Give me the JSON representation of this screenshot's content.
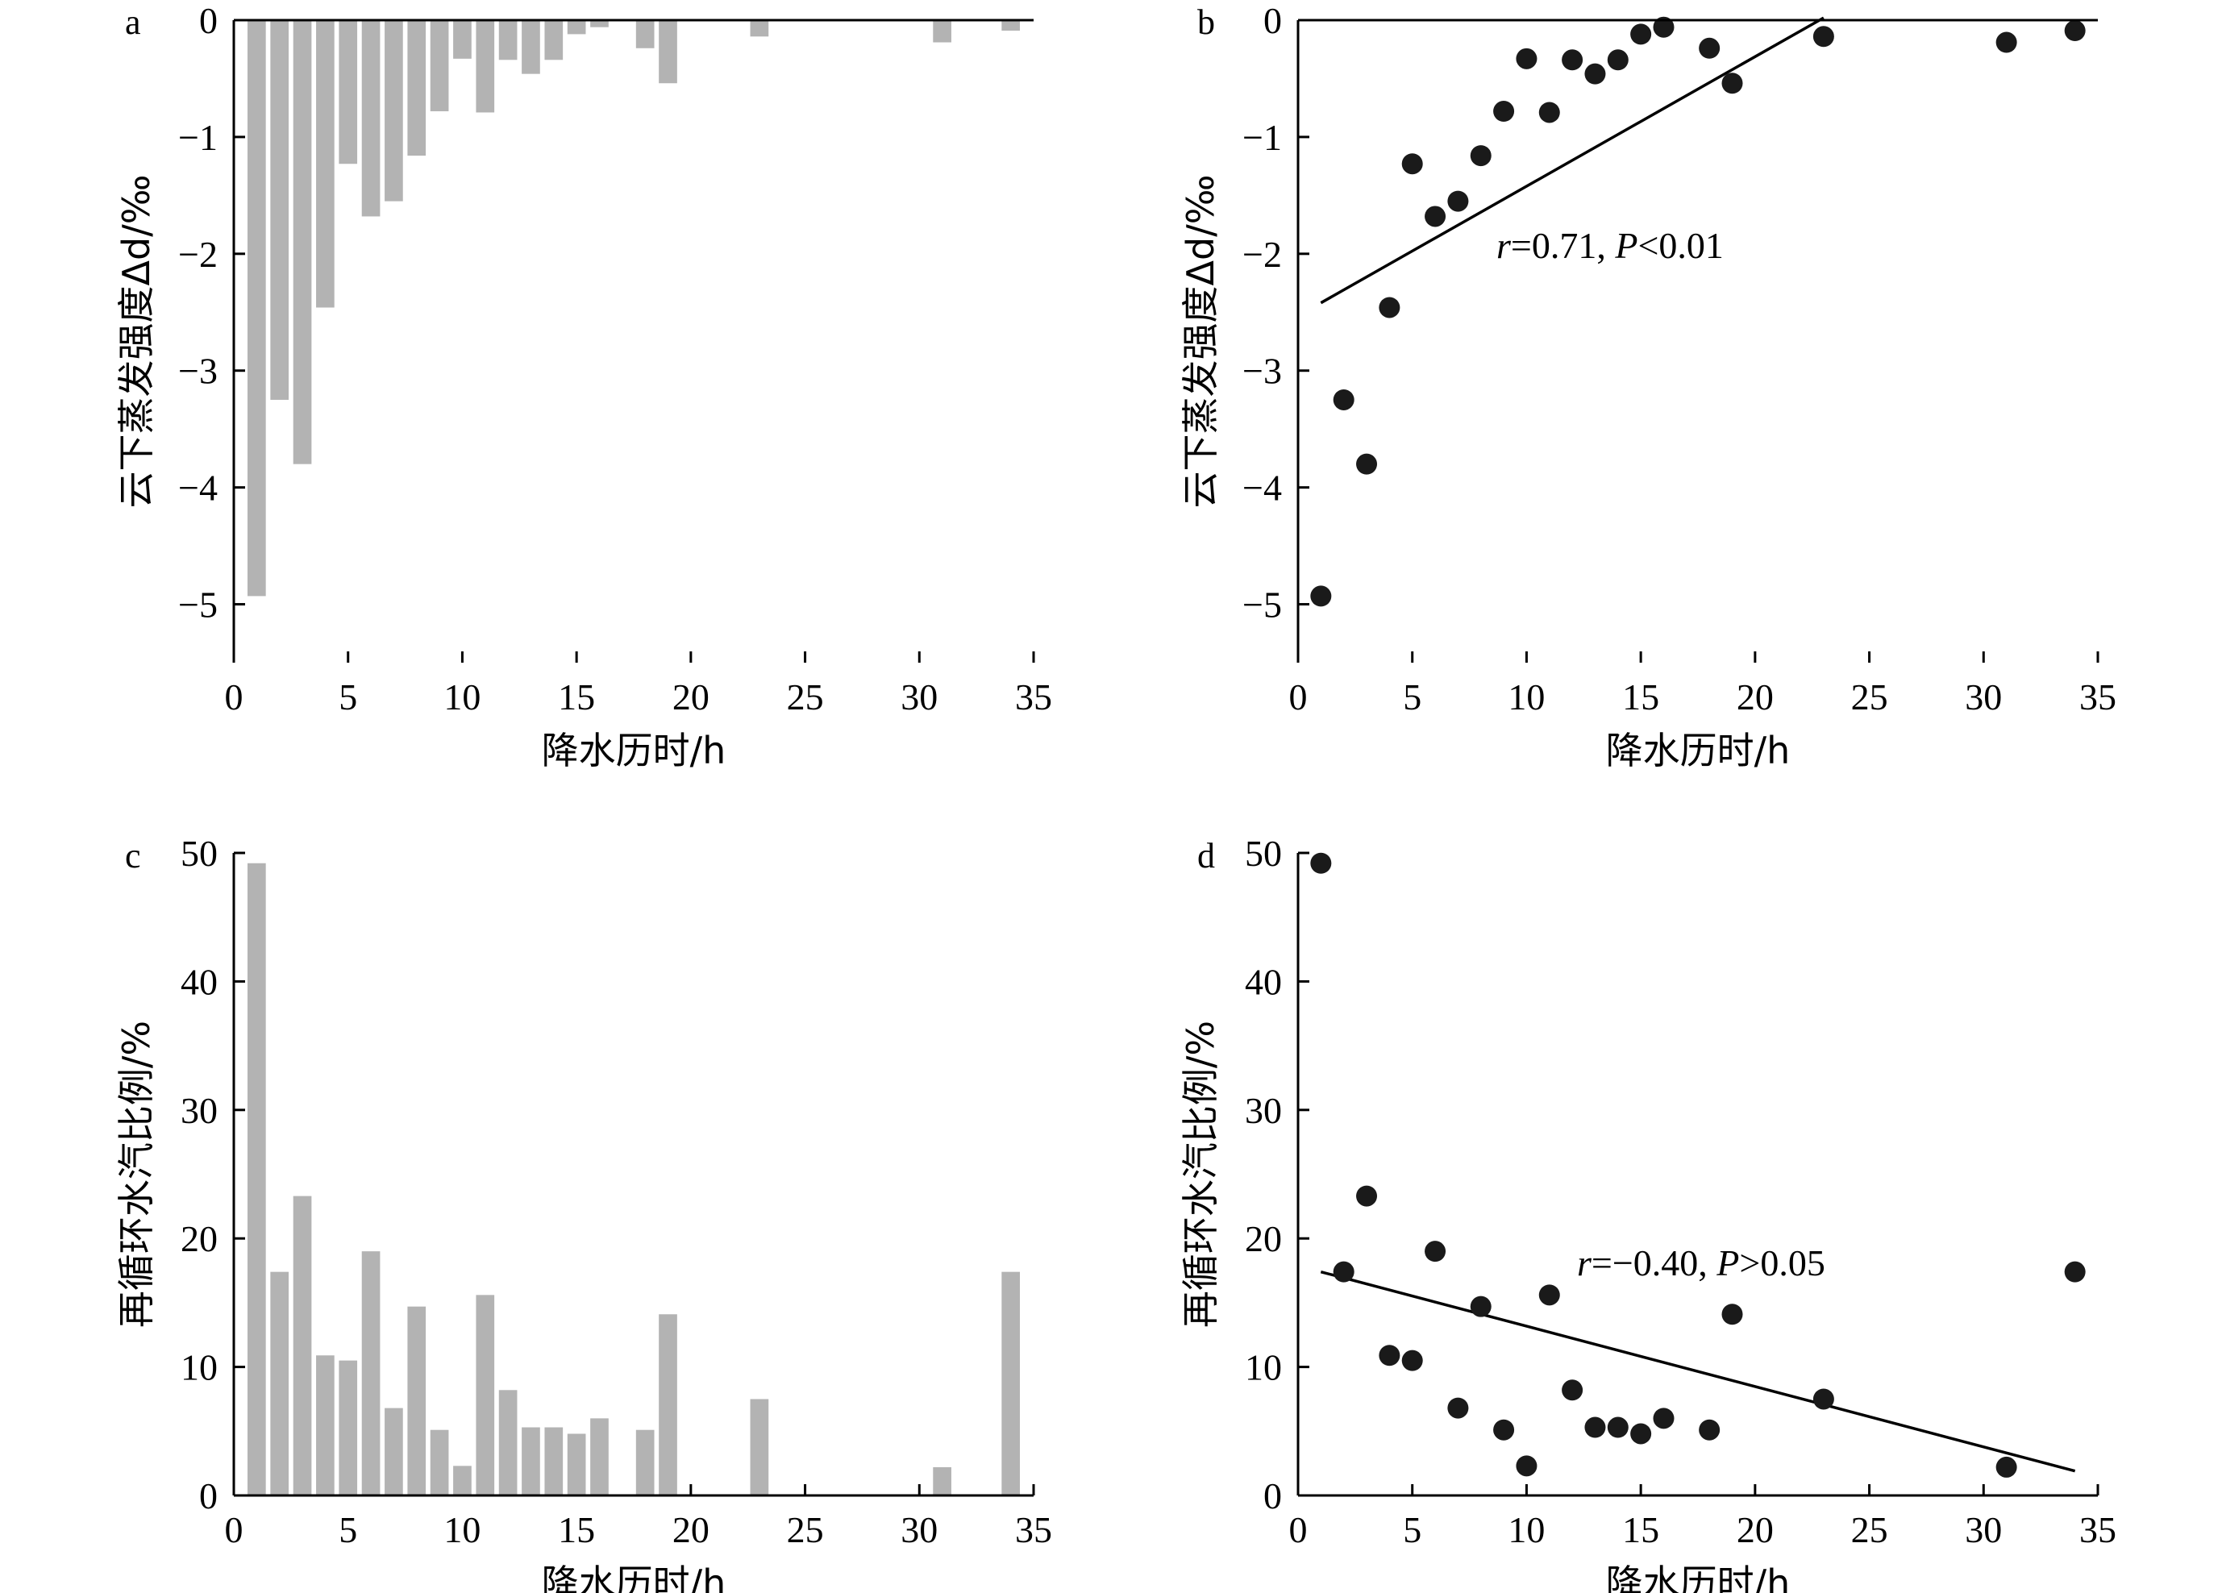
{
  "chart_data": [
    {
      "panel": "a",
      "type": "bar",
      "xlabel": "降水历时/h",
      "ylabel": "云下蒸发强度Δd/‰",
      "xlim": [
        0,
        35
      ],
      "ylim": [
        -5.5,
        0
      ],
      "xticks": [
        0,
        5,
        10,
        15,
        20,
        25,
        30,
        35
      ],
      "yticks": [
        0,
        -1,
        -2,
        -3,
        -4,
        -5
      ],
      "x": [
        1,
        2,
        3,
        4,
        5,
        6,
        7,
        8,
        9,
        10,
        11,
        12,
        13,
        14,
        15,
        16,
        18,
        19,
        23,
        31,
        34
      ],
      "values": [
        -4.93,
        -3.25,
        -3.8,
        -2.46,
        -1.23,
        -1.68,
        -1.55,
        -1.16,
        -0.78,
        -0.33,
        -0.79,
        -0.34,
        -0.46,
        -0.34,
        -0.12,
        -0.06,
        -0.24,
        -0.54,
        -0.14,
        -0.19,
        -0.09
      ]
    },
    {
      "panel": "b",
      "type": "scatter",
      "xlabel": "降水历时/h",
      "ylabel": "云下蒸发强度Δd/‰",
      "xlim": [
        0,
        35
      ],
      "ylim": [
        -5.5,
        0
      ],
      "xticks": [
        0,
        5,
        10,
        15,
        20,
        25,
        30,
        35
      ],
      "yticks": [
        0,
        -1,
        -2,
        -3,
        -4,
        -5
      ],
      "x": [
        1,
        2,
        3,
        4,
        5,
        6,
        7,
        8,
        9,
        10,
        11,
        12,
        13,
        14,
        15,
        16,
        18,
        19,
        23,
        31,
        34
      ],
      "y": [
        -4.93,
        -3.25,
        -3.8,
        -2.46,
        -1.23,
        -1.68,
        -1.55,
        -1.16,
        -0.78,
        -0.33,
        -0.79,
        -0.34,
        -0.46,
        -0.34,
        -0.12,
        -0.06,
        -0.24,
        -0.54,
        -0.14,
        -0.19,
        -0.09
      ],
      "fit_line": {
        "x": [
          1,
          23
        ],
        "y": [
          -2.42,
          0.02
        ]
      },
      "annotation": {
        "r_part": "r",
        "text_part": "=0.71, ",
        "p_part": "P",
        "tail_part": "<0.01"
      }
    },
    {
      "panel": "c",
      "type": "bar",
      "xlabel": "降水历时/h",
      "ylabel": "再循环水汽比例/%",
      "xlim": [
        0,
        35
      ],
      "ylim": [
        0,
        50
      ],
      "xticks": [
        0,
        5,
        10,
        15,
        20,
        25,
        30,
        35
      ],
      "yticks": [
        0,
        10,
        20,
        30,
        40,
        50
      ],
      "x": [
        1,
        2,
        3,
        4,
        5,
        6,
        7,
        8,
        9,
        10,
        11,
        12,
        13,
        14,
        15,
        16,
        18,
        19,
        23,
        31,
        34
      ],
      "values": [
        49.2,
        17.4,
        23.3,
        10.9,
        10.5,
        19.0,
        6.8,
        14.7,
        5.1,
        2.3,
        15.6,
        8.2,
        5.3,
        5.3,
        4.8,
        6.0,
        5.1,
        14.1,
        7.5,
        2.2,
        17.4
      ]
    },
    {
      "panel": "d",
      "type": "scatter",
      "xlabel": "降水历时/h",
      "ylabel": "再循环水汽比例/%",
      "xlim": [
        0,
        35
      ],
      "ylim": [
        0,
        50
      ],
      "xticks": [
        0,
        5,
        10,
        15,
        20,
        25,
        30,
        35
      ],
      "yticks": [
        0,
        10,
        20,
        30,
        40,
        50
      ],
      "x": [
        1,
        2,
        3,
        4,
        5,
        6,
        7,
        8,
        9,
        10,
        11,
        12,
        13,
        14,
        15,
        16,
        18,
        19,
        23,
        31,
        34
      ],
      "y": [
        49.2,
        17.4,
        23.3,
        10.9,
        10.5,
        19.0,
        6.8,
        14.7,
        5.1,
        2.3,
        15.6,
        8.2,
        5.3,
        5.3,
        4.8,
        6.0,
        5.1,
        14.1,
        7.5,
        2.2,
        17.4
      ],
      "fit_line": {
        "x": [
          1,
          34
        ],
        "y": [
          17.4,
          1.9
        ]
      },
      "annotation": {
        "r_part": "r",
        "text_part": "=−0.40, ",
        "p_part": "P",
        "tail_part": ">0.05"
      }
    }
  ]
}
